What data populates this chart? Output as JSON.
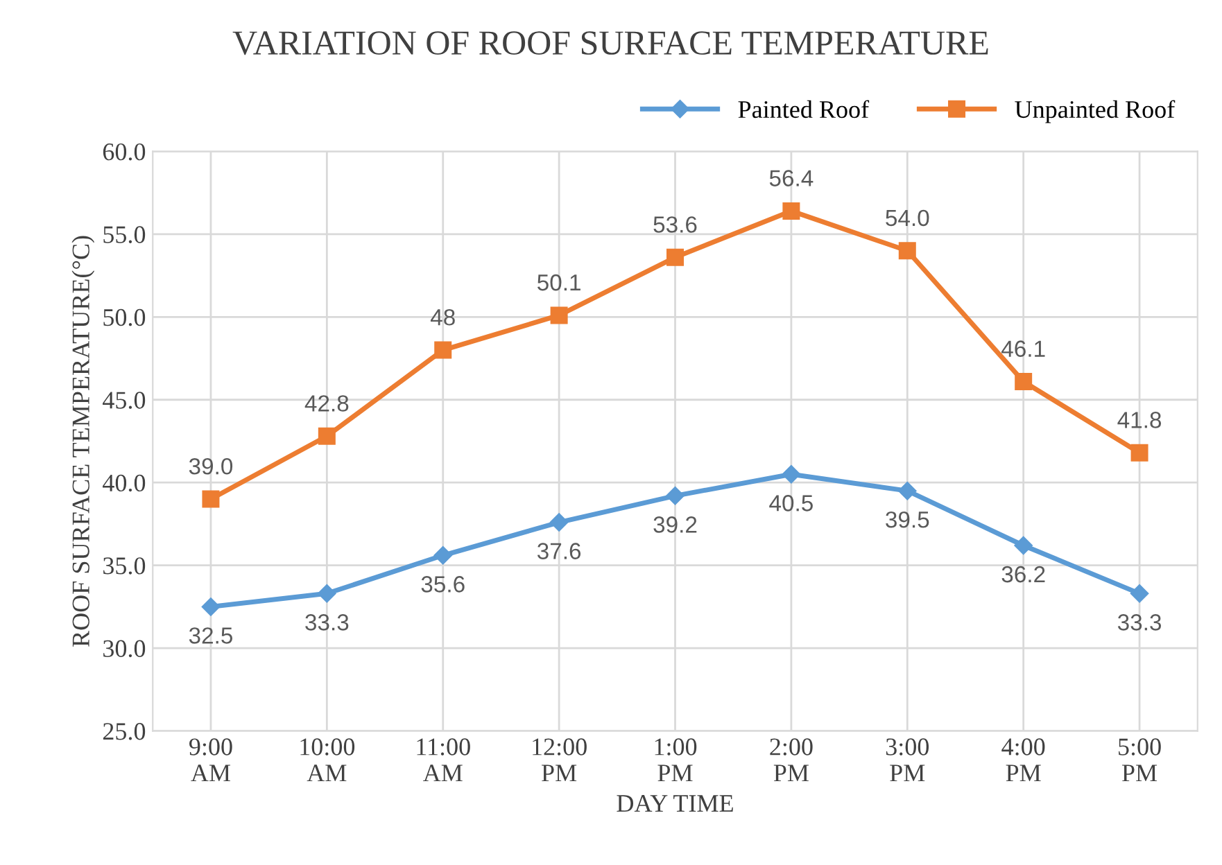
{
  "chart_data": {
    "type": "line",
    "title": "VARIATION OF ROOF SURFACE TEMPERATURE",
    "xlabel": "DAY TIME",
    "ylabel": "ROOF SURFACE TEMPERATURE(°C)",
    "categories": [
      "9:00\nAM",
      "10:00\nAM",
      "11:00\nAM",
      "12:00\nPM",
      "1:00\nPM",
      "2:00\nPM",
      "3:00\nPM",
      "4:00\nPM",
      "5:00\nPM"
    ],
    "series": [
      {
        "name": "Painted Roof",
        "color": "#5b9bd5",
        "marker": "diamond",
        "values": [
          32.5,
          33.3,
          35.6,
          37.6,
          39.2,
          40.5,
          39.5,
          36.2,
          33.3
        ],
        "value_labels": [
          "32.5",
          "33.3",
          "35.6",
          "37.6",
          "39.2",
          "40.5",
          "39.5",
          "36.2",
          "33.3"
        ]
      },
      {
        "name": "Unpainted Roof",
        "color": "#ed7d31",
        "marker": "square",
        "values": [
          39.0,
          42.8,
          48,
          50.1,
          53.6,
          56.4,
          54.0,
          46.1,
          41.8
        ],
        "value_labels": [
          "39.0",
          "42.8",
          "48",
          "50.1",
          "53.6",
          "56.4",
          "54.0",
          "46.1",
          "41.8"
        ]
      }
    ],
    "ylim": [
      25,
      60
    ],
    "yticks": [
      {
        "value": 25,
        "label": "25.0"
      },
      {
        "value": 30,
        "label": "30.0"
      },
      {
        "value": 35,
        "label": "35.0"
      },
      {
        "value": 40,
        "label": "40.0"
      },
      {
        "value": 45,
        "label": "45.0"
      },
      {
        "value": 50,
        "label": "50.0"
      },
      {
        "value": 55,
        "label": "55.0"
      },
      {
        "value": 60,
        "label": "60.0"
      }
    ],
    "grid": true,
    "legend": "top right",
    "line_style": "solid"
  }
}
